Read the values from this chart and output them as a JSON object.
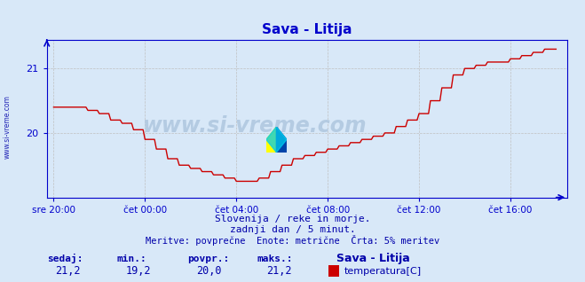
{
  "title": "Sava - Litija",
  "title_color": "#0000cc",
  "bg_color": "#d8e8f8",
  "plot_bg_color": "#d8e8f8",
  "grid_color": "#c0c0c0",
  "grid_style": "--",
  "line_color": "#cc0000",
  "axis_color": "#0000cc",
  "tick_color": "#0000cc",
  "x_labels": [
    "sre 20:00",
    "čet 00:00",
    "čet 04:00",
    "čet 08:00",
    "čet 12:00",
    "čet 16:00"
  ],
  "x_ticks_hours": [
    0,
    4,
    8,
    12,
    16,
    20
  ],
  "ylim": [
    19.0,
    21.45
  ],
  "yticks": [
    20,
    21
  ],
  "watermark": "www.si-vreme.com",
  "footer_line1": "Slovenija / reke in morje.",
  "footer_line2": "zadnji dan / 5 minut.",
  "footer_line3": "Meritve: povprečne  Enote: metrične  Črta: 5% meritev",
  "footer_color": "#0000aa",
  "bottom_labels": [
    "sedaj:",
    "min.:",
    "povpr.:",
    "maks.:"
  ],
  "bottom_values": [
    "21,2",
    "19,2",
    "20,0",
    "21,2"
  ],
  "bottom_series_name": "Sava - Litija",
  "bottom_series_label": "temperatura[C]",
  "legend_color": "#cc0000",
  "side_text": "www.si-vreme.com",
  "side_color": "#0000aa"
}
